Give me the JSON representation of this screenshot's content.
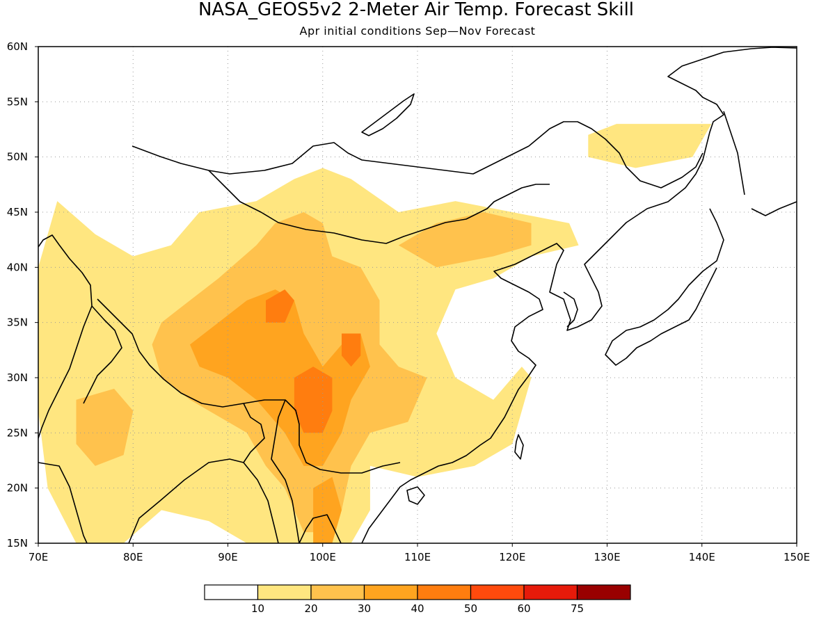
{
  "title": "NASA_GEOS5v2 2-Meter Air Temp. Forecast Skill",
  "subtitle": "Apr initial conditions  Sep—Nov Forecast",
  "map": {
    "lon_range": [
      70,
      150
    ],
    "lat_range": [
      15,
      60
    ],
    "lon_ticks": [
      {
        "lon": 70,
        "label": "70E"
      },
      {
        "lon": 80,
        "label": "80E"
      },
      {
        "lon": 90,
        "label": "90E"
      },
      {
        "lon": 100,
        "label": "100E"
      },
      {
        "lon": 110,
        "label": "110E"
      },
      {
        "lon": 120,
        "label": "120E"
      },
      {
        "lon": 130,
        "label": "130E"
      },
      {
        "lon": 140,
        "label": "140E"
      },
      {
        "lon": 150,
        "label": "150E"
      }
    ],
    "lat_ticks": [
      {
        "lat": 15,
        "label": "15N"
      },
      {
        "lat": 20,
        "label": "20N"
      },
      {
        "lat": 25,
        "label": "25N"
      },
      {
        "lat": 30,
        "label": "30N"
      },
      {
        "lat": 35,
        "label": "35N"
      },
      {
        "lat": 40,
        "label": "40N"
      },
      {
        "lat": 45,
        "label": "45N"
      },
      {
        "lat": 50,
        "label": "50N"
      },
      {
        "lat": 55,
        "label": "55N"
      },
      {
        "lat": 60,
        "label": "60N"
      }
    ],
    "grid": "dotted"
  },
  "colorbar": {
    "colors": [
      "#ffffff",
      "#ffe680",
      "#ffc24d",
      "#ffa41f",
      "#ff7d0f",
      "#ff4a0d",
      "#e61a0a",
      "#990000"
    ],
    "labels": [
      "10",
      "20",
      "30",
      "40",
      "50",
      "60",
      "75"
    ]
  },
  "skill_regions": [
    {
      "level": 1,
      "lonlat": [
        [
          72,
          46
        ],
        [
          76,
          43
        ],
        [
          80,
          41
        ],
        [
          84,
          42
        ],
        [
          87,
          45
        ],
        [
          93,
          46
        ],
        [
          97,
          48
        ],
        [
          100,
          49
        ],
        [
          103,
          48
        ],
        [
          108,
          45
        ],
        [
          114,
          46
        ],
        [
          120,
          45
        ],
        [
          126,
          44
        ],
        [
          127,
          42
        ],
        [
          122,
          41
        ],
        [
          118,
          39
        ],
        [
          114,
          38
        ],
        [
          112,
          34
        ],
        [
          114,
          30
        ],
        [
          118,
          28
        ],
        [
          121,
          31
        ],
        [
          122,
          30
        ],
        [
          120,
          24
        ],
        [
          116,
          22
        ],
        [
          110,
          21
        ],
        [
          105,
          22
        ],
        [
          105,
          18
        ],
        [
          103,
          15
        ],
        [
          92,
          15
        ],
        [
          88,
          17
        ],
        [
          83,
          18
        ],
        [
          79,
          15
        ],
        [
          74,
          15
        ],
        [
          71,
          20
        ],
        [
          70,
          27
        ],
        [
          70,
          40
        ]
      ]
    },
    {
      "level": 1,
      "lonlat": [
        [
          128,
          52
        ],
        [
          131,
          53
        ],
        [
          135,
          53
        ],
        [
          141,
          53
        ],
        [
          139,
          50
        ],
        [
          133,
          49
        ],
        [
          128,
          50
        ]
      ]
    },
    {
      "level": 2,
      "lonlat": [
        [
          83,
          35
        ],
        [
          86,
          37
        ],
        [
          89,
          39
        ],
        [
          93,
          42
        ],
        [
          95,
          44
        ],
        [
          98,
          45
        ],
        [
          100,
          44
        ],
        [
          101,
          41
        ],
        [
          104,
          40
        ],
        [
          106,
          37
        ],
        [
          106,
          33
        ],
        [
          108,
          31
        ],
        [
          111,
          30
        ],
        [
          109,
          26
        ],
        [
          105,
          25
        ],
        [
          103,
          22
        ],
        [
          102,
          18
        ],
        [
          100,
          16
        ],
        [
          98,
          16
        ],
        [
          96,
          20
        ],
        [
          94,
          22
        ],
        [
          92,
          25
        ],
        [
          88,
          27
        ],
        [
          86,
          28
        ],
        [
          83,
          30
        ],
        [
          82,
          33
        ]
      ]
    },
    {
      "level": 2,
      "lonlat": [
        [
          108,
          42
        ],
        [
          112,
          44
        ],
        [
          117,
          45
        ],
        [
          122,
          44
        ],
        [
          122,
          42
        ],
        [
          118,
          41
        ],
        [
          112,
          40
        ]
      ]
    },
    {
      "level": 2,
      "lonlat": [
        [
          74,
          28
        ],
        [
          78,
          29
        ],
        [
          80,
          27
        ],
        [
          79,
          23
        ],
        [
          76,
          22
        ],
        [
          74,
          24
        ]
      ]
    },
    {
      "level": 3,
      "lonlat": [
        [
          86,
          33
        ],
        [
          89,
          35
        ],
        [
          92,
          37
        ],
        [
          95,
          38
        ],
        [
          97,
          37
        ],
        [
          98,
          34
        ],
        [
          100,
          31
        ],
        [
          102,
          33
        ],
        [
          104,
          34
        ],
        [
          105,
          31
        ],
        [
          103,
          28
        ],
        [
          102,
          25
        ],
        [
          100,
          22
        ],
        [
          98,
          22
        ],
        [
          96,
          25
        ],
        [
          93,
          28
        ],
        [
          90,
          30
        ],
        [
          87,
          31
        ]
      ]
    },
    {
      "level": 3,
      "lonlat": [
        [
          99,
          20
        ],
        [
          101,
          21
        ],
        [
          102,
          18
        ],
        [
          101,
          15
        ],
        [
          99,
          15
        ]
      ]
    },
    {
      "level": 4,
      "lonlat": [
        [
          97,
          30
        ],
        [
          99,
          31
        ],
        [
          101,
          30
        ],
        [
          101,
          27
        ],
        [
          100,
          25
        ],
        [
          98,
          25
        ],
        [
          97,
          27
        ]
      ]
    },
    {
      "level": 4,
      "lonlat": [
        [
          94,
          37
        ],
        [
          96,
          38
        ],
        [
          97,
          37
        ],
        [
          96,
          35
        ],
        [
          94,
          35
        ]
      ]
    },
    {
      "level": 4,
      "lonlat": [
        [
          102,
          34
        ],
        [
          104,
          34
        ],
        [
          104,
          32
        ],
        [
          103,
          31
        ],
        [
          102,
          32
        ]
      ]
    }
  ]
}
